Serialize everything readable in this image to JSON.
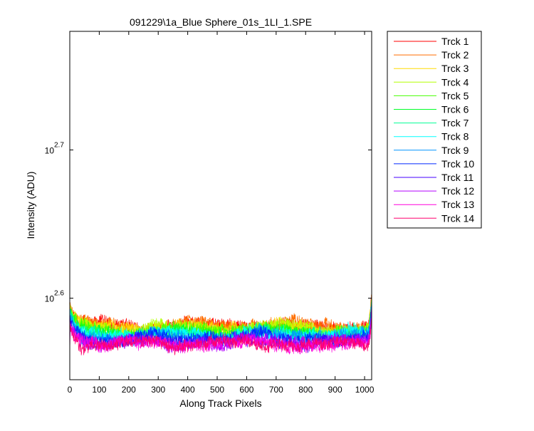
{
  "chart_data": {
    "type": "line",
    "title": "091229\\1a_Blue Sphere_01s_1LI_1.SPE",
    "xlabel": "Along Track Pixels",
    "ylabel": "Intensity (ADU)",
    "xscale": "linear",
    "yscale": "log",
    "xlim": [
      0,
      1024
    ],
    "ylim_log10": [
      2.545,
      2.78
    ],
    "xticks": [
      0,
      100,
      200,
      300,
      400,
      500,
      600,
      700,
      800,
      900,
      1000
    ],
    "yticks": [
      {
        "base": "10",
        "exponent": "2.6",
        "log10": 2.6
      },
      {
        "base": "10",
        "exponent": "2.7",
        "log10": 2.7
      }
    ],
    "grid": false,
    "legend_position": "outside-right",
    "x_points": 1024,
    "noise_log10": 0.004,
    "series": [
      {
        "name": "Trck 1",
        "color": "#ff0000",
        "log10_level": 2.581,
        "log10_start": 2.594
      },
      {
        "name": "Trck 2",
        "color": "#ff6e00",
        "log10_level": 2.5815,
        "log10_start": 2.594
      },
      {
        "name": "Trck 3",
        "color": "#ffdc00",
        "log10_level": 2.58,
        "log10_start": 2.593
      },
      {
        "name": "Trck 4",
        "color": "#b4ff00",
        "log10_level": 2.579,
        "log10_start": 2.592
      },
      {
        "name": "Trck 5",
        "color": "#46ff00",
        "log10_level": 2.578,
        "log10_start": 2.591
      },
      {
        "name": "Trck 6",
        "color": "#00ff28",
        "log10_level": 2.577,
        "log10_start": 2.59
      },
      {
        "name": "Trck 7",
        "color": "#00ff96",
        "log10_level": 2.576,
        "log10_start": 2.589
      },
      {
        "name": "Trck 8",
        "color": "#00ffff",
        "log10_level": 2.575,
        "log10_start": 2.588
      },
      {
        "name": "Trck 9",
        "color": "#0096ff",
        "log10_level": 2.574,
        "log10_start": 2.587
      },
      {
        "name": "Trck 10",
        "color": "#0028ff",
        "log10_level": 2.573,
        "log10_start": 2.586
      },
      {
        "name": "Trck 11",
        "color": "#4600ff",
        "log10_level": 2.571,
        "log10_start": 2.585
      },
      {
        "name": "Trck 12",
        "color": "#b400ff",
        "log10_level": 2.5705,
        "log10_start": 2.584
      },
      {
        "name": "Trck 13",
        "color": "#ff00dc",
        "log10_level": 2.569,
        "log10_start": 2.583
      },
      {
        "name": "Trck 14",
        "color": "#ff006e",
        "log10_level": 2.5695,
        "log10_start": 2.583
      }
    ]
  }
}
